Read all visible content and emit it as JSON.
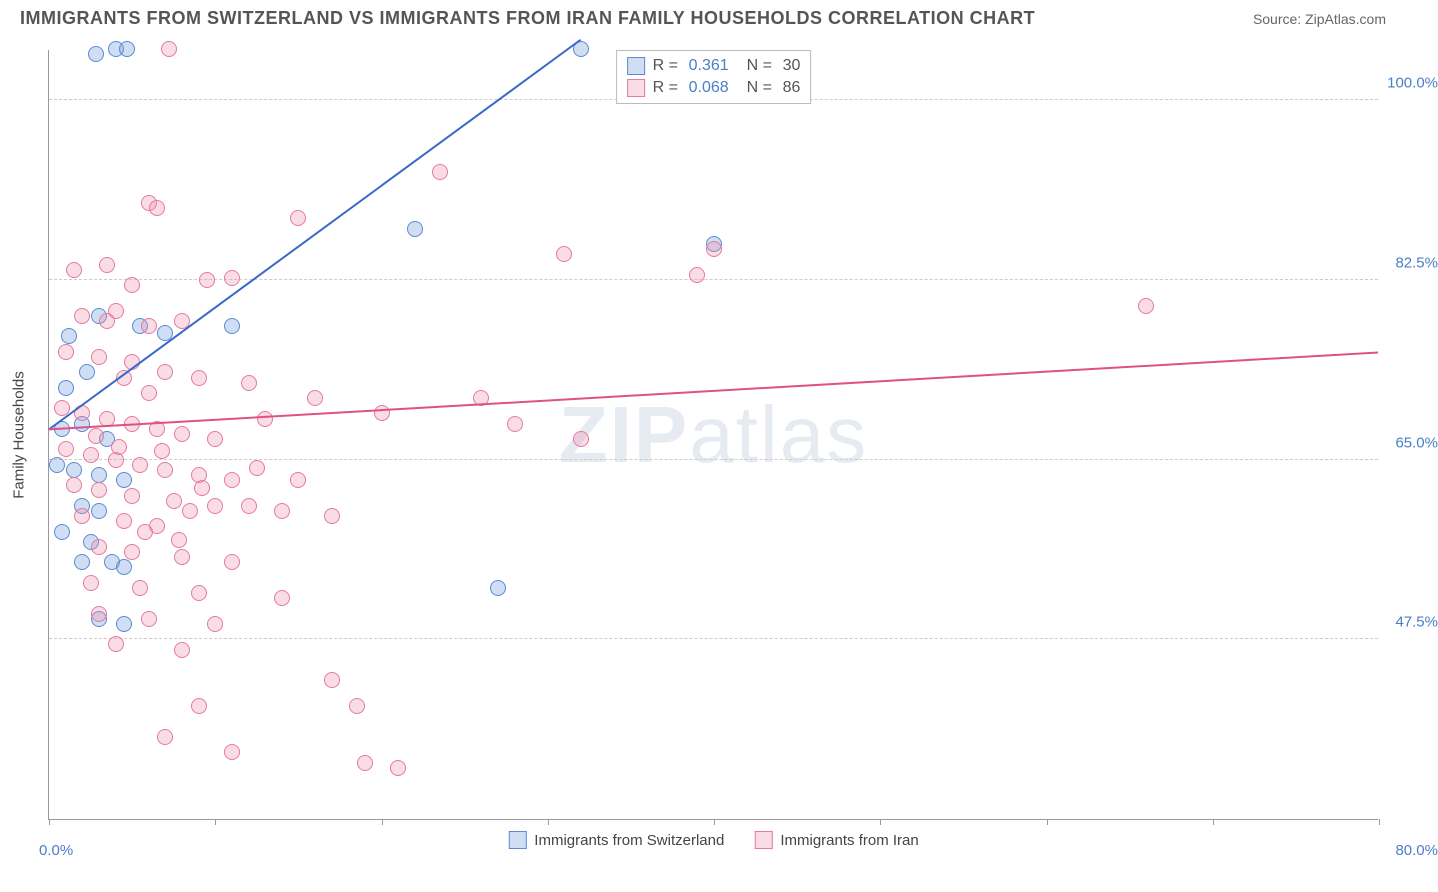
{
  "title": "IMMIGRANTS FROM SWITZERLAND VS IMMIGRANTS FROM IRAN FAMILY HOUSEHOLDS CORRELATION CHART",
  "source": "Source: ZipAtlas.com",
  "watermark": {
    "bold": "ZIP",
    "light": "atlas"
  },
  "chart": {
    "type": "scatter",
    "x_axis": {
      "min": 0.0,
      "max": 80.0,
      "min_label": "0.0%",
      "max_label": "80.0%",
      "ticks_pct": [
        0,
        12.5,
        25,
        37.5,
        50,
        62.5,
        75,
        87.5,
        100
      ]
    },
    "y_axis": {
      "title": "Family Households",
      "min": 30.0,
      "max": 105.0,
      "gridlines": [
        47.5,
        65.0,
        82.5,
        100.0
      ],
      "labels": [
        "47.5%",
        "65.0%",
        "82.5%",
        "100.0%"
      ]
    },
    "series": [
      {
        "id": "switzerland",
        "name": "Immigrants from Switzerland",
        "fill": "rgba(120,160,220,0.35)",
        "stroke": "#5b8bd4",
        "line_color": "#3968c8",
        "line_width": 2,
        "R": "0.361",
        "N": "30",
        "trend": {
          "x1": 0.0,
          "y1": 68.0,
          "x2": 32.0,
          "y2": 106.0
        },
        "points": [
          [
            4.0,
            105.0
          ],
          [
            4.7,
            105.0
          ],
          [
            32.0,
            105.0
          ],
          [
            22.0,
            87.5
          ],
          [
            40.0,
            86.0
          ],
          [
            1.2,
            77.0
          ],
          [
            3.0,
            79.0
          ],
          [
            5.5,
            78.0
          ],
          [
            7.0,
            77.3
          ],
          [
            11.0,
            78.0
          ],
          [
            1.0,
            72.0
          ],
          [
            2.3,
            73.5
          ],
          [
            0.8,
            68.0
          ],
          [
            2.0,
            68.5
          ],
          [
            3.5,
            67.0
          ],
          [
            0.5,
            64.5
          ],
          [
            1.5,
            64.0
          ],
          [
            3.0,
            63.5
          ],
          [
            4.5,
            63.0
          ],
          [
            2.0,
            60.5
          ],
          [
            3.0,
            60.0
          ],
          [
            0.8,
            58.0
          ],
          [
            2.5,
            57.0
          ],
          [
            2.0,
            55.0
          ],
          [
            3.8,
            55.0
          ],
          [
            4.5,
            54.5
          ],
          [
            3.0,
            49.5
          ],
          [
            4.5,
            49.0
          ],
          [
            27.0,
            52.5
          ],
          [
            2.8,
            104.5
          ]
        ]
      },
      {
        "id": "iran",
        "name": "Immigrants from Iran",
        "fill": "rgba(240,140,170,0.30)",
        "stroke": "#e47aa0",
        "line_color": "#e0527e",
        "line_width": 2,
        "R": "0.068",
        "N": "86",
        "trend": {
          "x1": 0.0,
          "y1": 68.0,
          "x2": 80.0,
          "y2": 75.5
        },
        "points": [
          [
            7.2,
            105.0
          ],
          [
            23.5,
            93.0
          ],
          [
            6.0,
            90.0
          ],
          [
            6.5,
            89.5
          ],
          [
            15.0,
            88.5
          ],
          [
            31.0,
            85.0
          ],
          [
            40.0,
            85.5
          ],
          [
            39.0,
            83.0
          ],
          [
            1.5,
            83.5
          ],
          [
            3.5,
            84.0
          ],
          [
            5.0,
            82.0
          ],
          [
            9.5,
            82.5
          ],
          [
            11.0,
            82.7
          ],
          [
            66.0,
            80.0
          ],
          [
            2.0,
            79.0
          ],
          [
            4.0,
            79.5
          ],
          [
            6.0,
            78.0
          ],
          [
            8.0,
            78.5
          ],
          [
            1.0,
            75.5
          ],
          [
            3.0,
            75.0
          ],
          [
            5.0,
            74.5
          ],
          [
            7.0,
            73.5
          ],
          [
            9.0,
            73.0
          ],
          [
            12.0,
            72.5
          ],
          [
            16.0,
            71.0
          ],
          [
            26.0,
            71.0
          ],
          [
            0.8,
            70.0
          ],
          [
            2.0,
            69.5
          ],
          [
            3.5,
            69.0
          ],
          [
            5.0,
            68.5
          ],
          [
            6.5,
            68.0
          ],
          [
            8.0,
            67.5
          ],
          [
            10.0,
            67.0
          ],
          [
            13.0,
            69.0
          ],
          [
            20.0,
            69.5
          ],
          [
            28.0,
            68.5
          ],
          [
            32.0,
            67.0
          ],
          [
            1.0,
            66.0
          ],
          [
            2.5,
            65.5
          ],
          [
            4.0,
            65.0
          ],
          [
            5.5,
            64.5
          ],
          [
            7.0,
            64.0
          ],
          [
            9.0,
            63.5
          ],
          [
            11.0,
            63.0
          ],
          [
            15.0,
            63.0
          ],
          [
            1.5,
            62.5
          ],
          [
            3.0,
            62.0
          ],
          [
            5.0,
            61.5
          ],
          [
            7.5,
            61.0
          ],
          [
            10.0,
            60.5
          ],
          [
            14.0,
            60.0
          ],
          [
            2.0,
            59.5
          ],
          [
            4.5,
            59.0
          ],
          [
            6.5,
            58.5
          ],
          [
            8.5,
            60.0
          ],
          [
            12.0,
            60.5
          ],
          [
            17.0,
            59.5
          ],
          [
            3.0,
            56.5
          ],
          [
            5.0,
            56.0
          ],
          [
            8.0,
            55.5
          ],
          [
            11.0,
            55.0
          ],
          [
            2.5,
            53.0
          ],
          [
            5.5,
            52.5
          ],
          [
            9.0,
            52.0
          ],
          [
            14.0,
            51.5
          ],
          [
            3.0,
            50.0
          ],
          [
            6.0,
            49.5
          ],
          [
            10.0,
            49.0
          ],
          [
            4.0,
            47.0
          ],
          [
            8.0,
            46.5
          ],
          [
            17.0,
            43.5
          ],
          [
            9.0,
            41.0
          ],
          [
            18.5,
            41.0
          ],
          [
            7.0,
            38.0
          ],
          [
            11.0,
            36.5
          ],
          [
            19.0,
            35.5
          ],
          [
            21.0,
            35.0
          ],
          [
            3.5,
            78.5
          ],
          [
            4.5,
            73.0
          ],
          [
            6.0,
            71.5
          ],
          [
            2.8,
            67.3
          ],
          [
            4.2,
            66.2
          ],
          [
            6.8,
            65.8
          ],
          [
            9.2,
            62.2
          ],
          [
            12.5,
            64.2
          ],
          [
            5.8,
            58.0
          ],
          [
            7.8,
            57.2
          ]
        ]
      }
    ],
    "stats_legend": {
      "R_label": "R  =",
      "N_label": "N  ="
    },
    "background": "#ffffff",
    "grid_color": "#cccccc",
    "axis_color": "#999999",
    "ylabel_color": "#4a7ec9"
  }
}
